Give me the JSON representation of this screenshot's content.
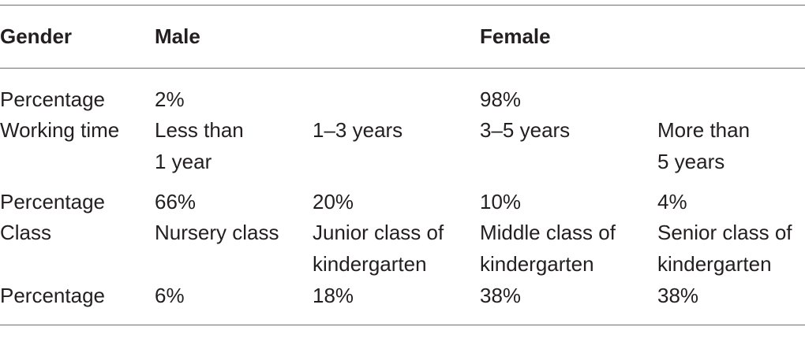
{
  "table": {
    "header": {
      "col0": "Gender",
      "col1": "Male",
      "col3": "Female"
    },
    "rows": [
      {
        "label": "Percentage",
        "cells": [
          "2%",
          "",
          "98%",
          ""
        ]
      },
      {
        "label": "Working time",
        "cells": [
          "Less than\n1 year",
          "1–3 years",
          "3–5 years",
          "More than\n5 years"
        ]
      },
      {
        "label": "Percentage",
        "cells": [
          "66%",
          "20%",
          "10%",
          "4%"
        ]
      },
      {
        "label": "Class",
        "cells": [
          "Nursery class",
          "Junior class of\nkindergarten",
          "Middle class of\nkindergarten",
          "Senior class of\nkindergarten"
        ]
      },
      {
        "label": "Percentage",
        "cells": [
          "6%",
          "18%",
          "38%",
          "38%"
        ]
      }
    ]
  }
}
